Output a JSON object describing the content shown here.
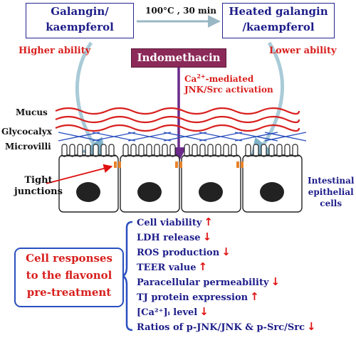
{
  "top": {
    "left_box": {
      "line1": "Galangin/",
      "line2": "kaempferol"
    },
    "right_box": {
      "line1": "Heated galangin",
      "line2": "/kaempferol"
    },
    "condition": "100°C , 30 min",
    "higher_label": "Higher ability",
    "lower_label": "Lower ability"
  },
  "indomethacin": {
    "label": "Indomethacin",
    "mechanism_line1_prefix": "Ca",
    "mechanism_line1_sup": "2+",
    "mechanism_line1_suffix": "-mediated",
    "mechanism_line2": "JNK/Src activation"
  },
  "layers": {
    "mucus": "Mucus",
    "glycocalyx": "Glycocalyx",
    "microvilli": "Microvilli",
    "tight_line1": "Tight",
    "tight_line2": "junctions",
    "cells_line1": "Intestinal",
    "cells_line2": "epithelial",
    "cells_line3": "cells"
  },
  "responses": {
    "title_line1": "Cell responses",
    "title_line2": "to the flavonol",
    "title_line3": "pre-treatment",
    "items": [
      {
        "label": "Cell viability",
        "direction": "up"
      },
      {
        "label": "LDH release",
        "direction": "down"
      },
      {
        "label": "ROS production",
        "direction": "down"
      },
      {
        "label": "TEER value",
        "direction": "up"
      },
      {
        "label": "Paracellular permeability",
        "direction": "down"
      },
      {
        "label": "TJ protein expression",
        "direction": "up"
      },
      {
        "label": "[Ca²⁺]ᵢ level",
        "direction": "down"
      },
      {
        "label": "Ratios of p-JNK/JNK & p-Src/Src",
        "direction": "down"
      }
    ],
    "up_symbol": "↑",
    "down_symbol": "↓"
  },
  "colors": {
    "red": "#d8201e",
    "blue_text": "#1d1d8a",
    "indomethacin_bg": "#8b2a59",
    "mucus": "#d8201e",
    "glycocalyx": "#2a4fbf",
    "tight_junction": "#e8822a",
    "nucleus": "#222222"
  }
}
